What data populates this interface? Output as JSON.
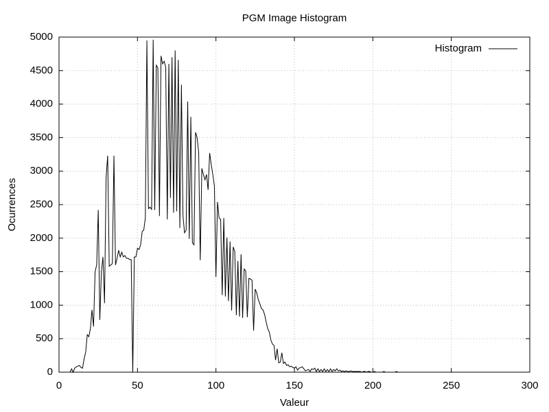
{
  "chart_data": {
    "type": "line",
    "title": "PGM Image Histogram",
    "x_label": "Valeur",
    "y_label": "Ocurrences",
    "xlim": [
      0,
      300
    ],
    "xticks": [
      0,
      50,
      100,
      150,
      200,
      250,
      300
    ],
    "ylim": [
      0,
      5000
    ],
    "yticks": [
      0,
      500,
      1000,
      1500,
      2000,
      2500,
      3000,
      3500,
      4000,
      4500,
      5000
    ],
    "grid": true,
    "legend": "top-right",
    "x": [
      0,
      1,
      2,
      3,
      4,
      5,
      6,
      7,
      8,
      9,
      10,
      11,
      12,
      13,
      14,
      15,
      16,
      17,
      18,
      19,
      20,
      21,
      22,
      23,
      24,
      25,
      26,
      27,
      28,
      29,
      30,
      31,
      32,
      33,
      34,
      35,
      36,
      37,
      38,
      39,
      40,
      41,
      42,
      43,
      44,
      45,
      46,
      47,
      48,
      49,
      50,
      51,
      52,
      53,
      54,
      55,
      56,
      57,
      58,
      59,
      60,
      61,
      62,
      63,
      64,
      65,
      66,
      67,
      68,
      69,
      70,
      71,
      72,
      73,
      74,
      75,
      76,
      77,
      78,
      79,
      80,
      81,
      82,
      83,
      84,
      85,
      86,
      87,
      88,
      89,
      90,
      91,
      92,
      93,
      94,
      95,
      96,
      97,
      98,
      99,
      100,
      101,
      102,
      103,
      104,
      105,
      106,
      107,
      108,
      109,
      110,
      111,
      112,
      113,
      114,
      115,
      116,
      117,
      118,
      119,
      120,
      121,
      122,
      123,
      124,
      125,
      126,
      127,
      128,
      129,
      130,
      131,
      132,
      133,
      134,
      135,
      136,
      137,
      138,
      139,
      140,
      141,
      142,
      143,
      144,
      145,
      146,
      147,
      148,
      149,
      150,
      151,
      152,
      153,
      154,
      155,
      156,
      157,
      158,
      159,
      160,
      161,
      162,
      163,
      164,
      165,
      166,
      167,
      168,
      169,
      170,
      171,
      172,
      173,
      174,
      175,
      176,
      177,
      178,
      179,
      180,
      181,
      182,
      183,
      184,
      185,
      186,
      187,
      188,
      189,
      190,
      191,
      192,
      193,
      194,
      195,
      196,
      197,
      198,
      199,
      200,
      201,
      202,
      203,
      204,
      205,
      206,
      207,
      208,
      209,
      210,
      211,
      212,
      213,
      214,
      215,
      216,
      217,
      218,
      219,
      220,
      221,
      222,
      223,
      224,
      225,
      226,
      227,
      228,
      229,
      230,
      231,
      232,
      233,
      234,
      235,
      236,
      237,
      238,
      239,
      240,
      241,
      242,
      243,
      244,
      245,
      246,
      247,
      248,
      249,
      250,
      251,
      252,
      253,
      254,
      255
    ],
    "series": [
      {
        "name": "Histogram",
        "color": "#000000",
        "values": [
          0,
          0,
          0,
          0,
          0,
          0,
          0,
          0,
          50,
          0,
          60,
          80,
          90,
          100,
          70,
          60,
          200,
          300,
          560,
          530,
          650,
          930,
          680,
          1500,
          1600,
          2420,
          780,
          1500,
          1720,
          1030,
          2900,
          3230,
          1580,
          1600,
          1620,
          3230,
          1600,
          1700,
          1820,
          1720,
          1790,
          1720,
          1740,
          1700,
          1700,
          1680,
          1680,
          0,
          1720,
          1720,
          1850,
          1830,
          1900,
          2100,
          2120,
          2300,
          4950,
          2440,
          2460,
          2430,
          4960,
          2420,
          4580,
          4540,
          2330,
          4720,
          4600,
          4640,
          4550,
          2280,
          4600,
          2600,
          4700,
          2380,
          4800,
          2400,
          4660,
          2150,
          4290,
          2330,
          2080,
          2120,
          4040,
          1990,
          3810,
          1930,
          1900,
          3580,
          3500,
          3280,
          1670,
          3040,
          2950,
          2870,
          2950,
          2720,
          3270,
          3100,
          2950,
          2780,
          1420,
          2540,
          2300,
          2280,
          1150,
          2300,
          1130,
          2010,
          1060,
          1950,
          920,
          1870,
          1800,
          850,
          1660,
          830,
          1760,
          810,
          1540,
          1510,
          820,
          1400,
          1390,
          1370,
          620,
          1240,
          1180,
          1080,
          1020,
          950,
          930,
          860,
          750,
          650,
          600,
          480,
          420,
          400,
          180,
          350,
          140,
          150,
          290,
          130,
          150,
          100,
          110,
          80,
          90,
          70,
          60,
          80,
          30,
          60,
          70,
          80,
          50,
          20,
          30,
          40,
          10,
          50,
          40,
          60,
          10,
          50,
          10,
          40,
          10,
          50,
          10,
          40,
          10,
          50,
          10,
          40,
          20,
          50,
          20,
          30,
          10,
          20,
          10,
          20,
          10,
          10,
          20,
          10,
          10,
          10,
          10,
          10,
          10,
          0,
          10,
          10,
          0,
          10,
          10,
          0,
          0,
          10,
          0,
          0,
          0,
          0,
          0,
          10,
          0,
          0,
          0,
          0,
          0,
          0,
          0,
          10,
          0,
          0,
          0,
          0,
          0,
          0,
          0,
          0,
          0,
          0,
          0,
          0,
          0,
          0,
          0,
          0,
          0,
          0,
          0,
          0,
          0,
          0,
          0,
          0,
          0,
          0,
          0,
          0,
          0,
          0,
          0,
          0,
          0,
          0,
          0,
          0,
          0,
          0,
          0,
          0
        ]
      }
    ]
  }
}
